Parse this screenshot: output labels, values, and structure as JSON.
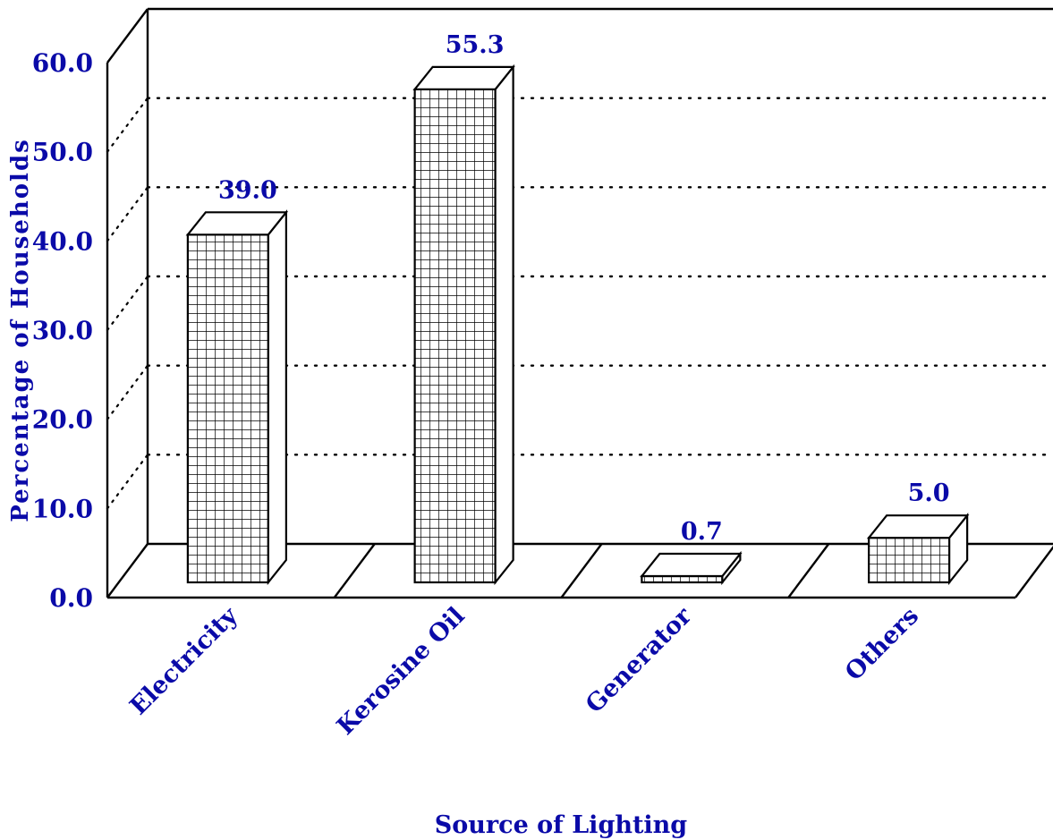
{
  "chart_data": {
    "type": "bar",
    "title": "",
    "xlabel": "Source of Lighting",
    "ylabel": "Percentage of Households",
    "categories": [
      "Electricity",
      "Kerosine Oil",
      "Generator",
      "Others"
    ],
    "values": [
      39.0,
      55.3,
      0.7,
      5.0
    ],
    "value_labels": [
      "39.0",
      "55.3",
      "0.7",
      "5.0"
    ],
    "yticks": [
      "0.0",
      "10.0",
      "20.0",
      "30.0",
      "40.0",
      "50.0",
      "60.0"
    ],
    "ylim": [
      0,
      60
    ],
    "grid": true,
    "style": "3d-grid-pattern",
    "colors": {
      "text": "#0a0aa8",
      "line": "#000000",
      "fill": "#ffffff"
    }
  }
}
